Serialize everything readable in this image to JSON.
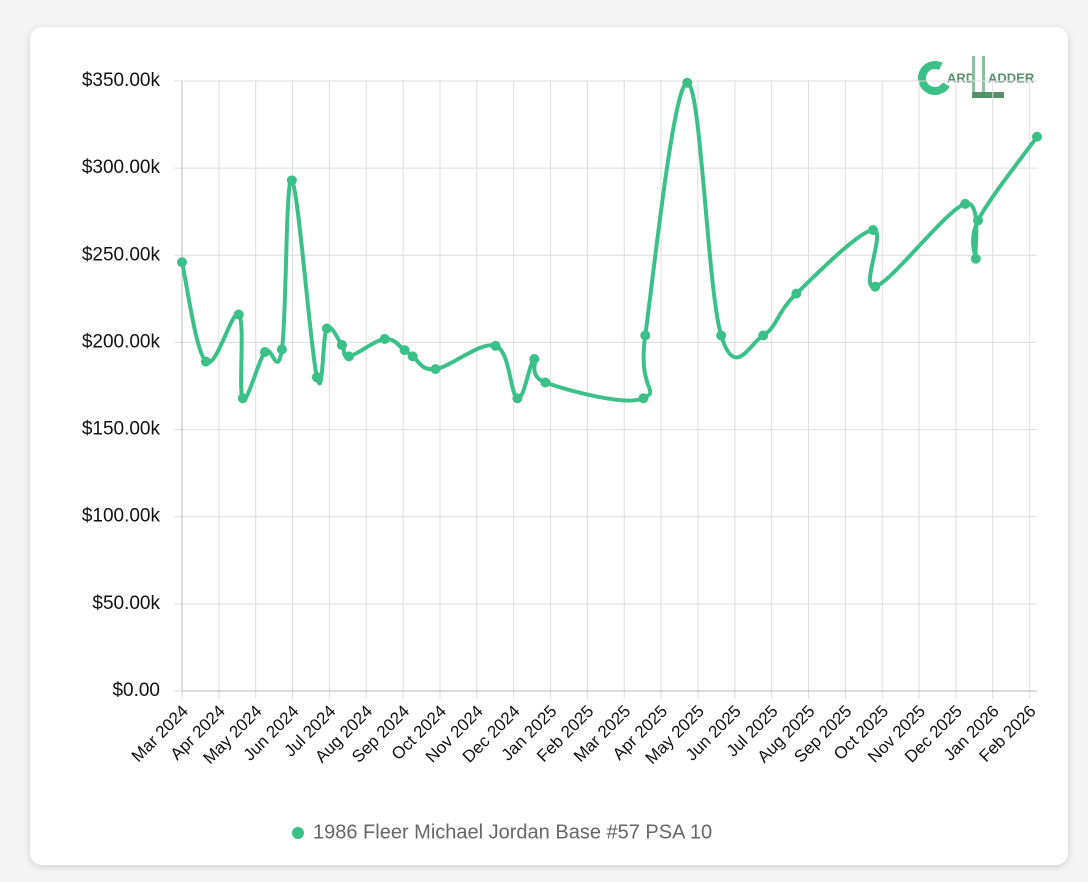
{
  "chart_data": {
    "type": "line",
    "logo": [
      "ARD",
      "ADDER"
    ],
    "x": [
      0,
      0.65,
      1.54,
      1.65,
      2.25,
      2.71,
      2.98,
      3.66,
      3.93,
      4.34,
      4.53,
      5.5,
      6.04,
      6.26,
      6.88,
      8.51,
      9.1,
      9.56,
      9.86,
      12.52,
      12.57,
      13.71,
      14.63,
      15.77,
      16.67,
      18.75,
      18.81,
      21.25,
      21.54,
      21.6,
      23.2
    ],
    "series": [
      {
        "name": "1986 Fleer Michael Jordan Base #57 PSA 10",
        "color": "#3cc08a",
        "values": [
          246000,
          189000,
          216000,
          168000,
          194500,
          196000,
          293000,
          180000,
          208000,
          198500,
          192000,
          202000,
          195600,
          192000,
          184700,
          198000,
          168000,
          190500,
          177000,
          168000,
          204000,
          349000,
          204000,
          204000,
          228000,
          264500,
          232000,
          279500,
          248000,
          270000,
          318000
        ]
      }
    ],
    "xlim": [
      0,
      23.2
    ],
    "xticks": [
      {
        "value": 0,
        "label": "Mar 2024"
      },
      {
        "value": 1,
        "label": "Apr 2024"
      },
      {
        "value": 2,
        "label": "May 2024"
      },
      {
        "value": 3,
        "label": "Jun 2024"
      },
      {
        "value": 4,
        "label": "Jul 2024"
      },
      {
        "value": 5,
        "label": "Aug 2024"
      },
      {
        "value": 6,
        "label": "Sep 2024"
      },
      {
        "value": 7,
        "label": "Oct 2024"
      },
      {
        "value": 8,
        "label": "Nov 2024"
      },
      {
        "value": 9,
        "label": "Dec 2024"
      },
      {
        "value": 10,
        "label": "Jan 2025"
      },
      {
        "value": 11,
        "label": "Feb 2025"
      },
      {
        "value": 12,
        "label": "Mar 2025"
      },
      {
        "value": 13,
        "label": "Apr 2025"
      },
      {
        "value": 14,
        "label": "May 2025"
      },
      {
        "value": 15,
        "label": "Jun 2025"
      },
      {
        "value": 16,
        "label": "Jul 2025"
      },
      {
        "value": 17,
        "label": "Aug 2025"
      },
      {
        "value": 18,
        "label": "Sep 2025"
      },
      {
        "value": 19,
        "label": "Oct 2025"
      },
      {
        "value": 20,
        "label": "Nov 2025"
      },
      {
        "value": 21,
        "label": "Dec 2025"
      },
      {
        "value": 22,
        "label": "Jan 2026"
      },
      {
        "value": 23,
        "label": "Feb 2026"
      }
    ],
    "ylim": [
      0,
      350000
    ],
    "yticks": [
      {
        "value": 0,
        "label": "$0.00"
      },
      {
        "value": 50000,
        "label": "$50.00k"
      },
      {
        "value": 100000,
        "label": "$100.00k"
      },
      {
        "value": 150000,
        "label": "$150.00k"
      },
      {
        "value": 200000,
        "label": "$200.00k"
      },
      {
        "value": 250000,
        "label": "$250.00k"
      },
      {
        "value": 300000,
        "label": "$300.00k"
      },
      {
        "value": 350000,
        "label": "$350.00k"
      }
    ],
    "grid": true
  }
}
